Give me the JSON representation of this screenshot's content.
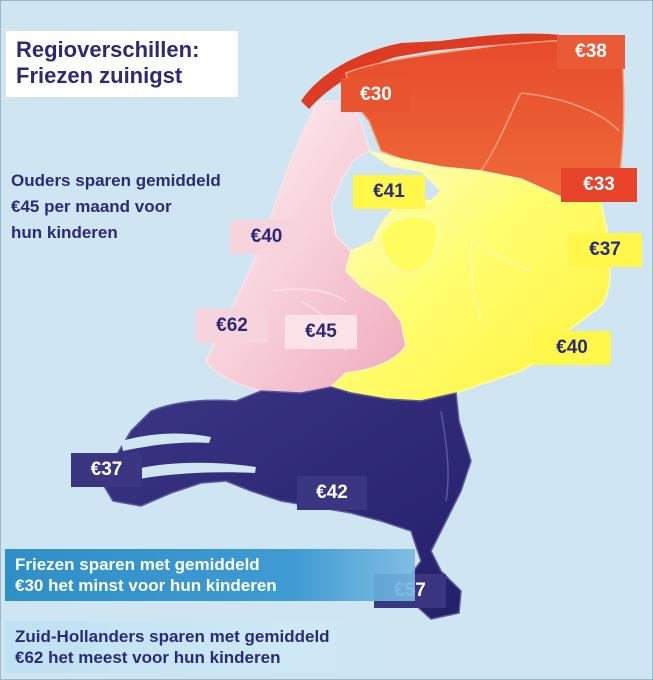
{
  "title": {
    "line1": "Regioverschillen:",
    "line2": "Friezen zuinigst"
  },
  "intro": {
    "line1": "Ouders sparen gemiddeld",
    "line2": "€45 per maand voor",
    "line3": "hun kinderen"
  },
  "regions": [
    {
      "label": "€30",
      "fill": "#dd3b22",
      "text_color": "#ffffff",
      "box": "#e8542f"
    },
    {
      "label": "€38",
      "fill": "#e74b2c",
      "text_color": "#ffffff",
      "box": "#eb5a36"
    },
    {
      "label": "€33",
      "fill": "#e94a2d",
      "text_color": "#ffffff",
      "box": "#e8442b"
    },
    {
      "label": "€41",
      "fill": "#fffe5e",
      "text_color": "#2b2a78",
      "box": "#fff84a"
    },
    {
      "label": "€37",
      "fill": "#fffe70",
      "text_color": "#2b2a78",
      "box": "#fff84a"
    },
    {
      "label": "€40",
      "fill": "#fbd1d9",
      "text_color": "#2b2a78",
      "box": "#f7d3dc"
    },
    {
      "label": "€62",
      "fill": "#f2b6c5",
      "text_color": "#2b2a78",
      "box": "#f7d3dc"
    },
    {
      "label": "€45",
      "fill": "#fbe0e6",
      "text_color": "#2b2a78",
      "box": "#fbe3e8"
    },
    {
      "label": "€40",
      "fill": "#fff544",
      "text_color": "#2b2a78",
      "box": "#fff84a"
    },
    {
      "label": "€37",
      "fill": "#34307e",
      "text_color": "#ffffff",
      "box": "#3a3682"
    },
    {
      "label": "€42",
      "fill": "#2f2a7a",
      "text_color": "#ffffff",
      "box": "#3a3682"
    },
    {
      "label": "€57",
      "fill": "#2b2673",
      "text_color": "#ffffff",
      "box": "#3a3682"
    }
  ],
  "banners": {
    "min_line1": "Friezen sparen met gemiddeld",
    "min_line2": "€30 het minst voor hun kinderen",
    "max_line1": "Zuid-Hollanders sparen met gemiddeld",
    "max_line2": "€62 het meest voor hun kinderen"
  },
  "colors": {
    "sea": "#cfe6f2",
    "navy_text": "#2b2a78",
    "banner_blue": "#2f8fc7"
  }
}
